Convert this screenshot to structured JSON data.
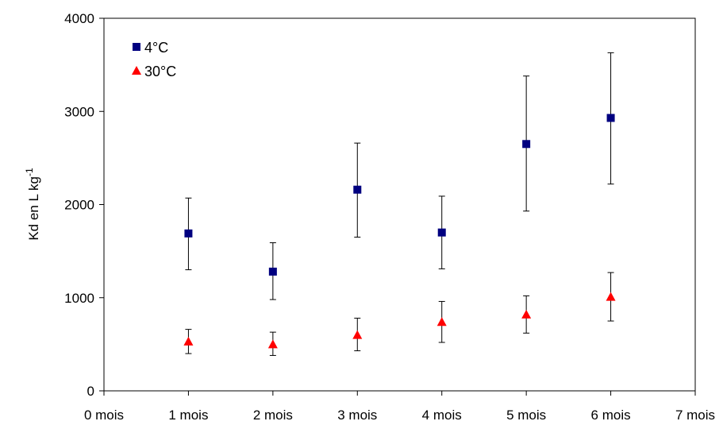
{
  "chart_data": {
    "type": "scatter",
    "title": "",
    "xlabel": "",
    "ylabel": "Kd en L kg",
    "ylabel_superscript": "-1",
    "categories": [
      "0 mois",
      "1 mois",
      "2 mois",
      "3 mois",
      "4 mois",
      "5 mois",
      "6 mois",
      "7 mois"
    ],
    "xlim": [
      0,
      7
    ],
    "ylim": [
      0,
      4000
    ],
    "yticks": [
      0,
      1000,
      2000,
      3000,
      4000
    ],
    "grid": false,
    "legend_position": "top-left",
    "series": [
      {
        "name": "4°C",
        "marker": "square",
        "color": "#000080",
        "x": [
          1,
          2,
          3,
          4,
          5,
          6
        ],
        "y": [
          1690,
          1280,
          2160,
          1700,
          2650,
          2930
        ],
        "err_low": [
          1300,
          980,
          1650,
          1310,
          1930,
          2220
        ],
        "err_high": [
          2070,
          1590,
          2660,
          2090,
          3380,
          3630
        ]
      },
      {
        "name": "30°C",
        "marker": "triangle",
        "color": "#ff0000",
        "x": [
          1,
          2,
          3,
          4,
          5,
          6
        ],
        "y": [
          530,
          500,
          600,
          740,
          820,
          1010
        ],
        "err_low": [
          400,
          380,
          430,
          520,
          620,
          750
        ],
        "err_high": [
          660,
          630,
          780,
          960,
          1020,
          1270
        ]
      }
    ]
  }
}
